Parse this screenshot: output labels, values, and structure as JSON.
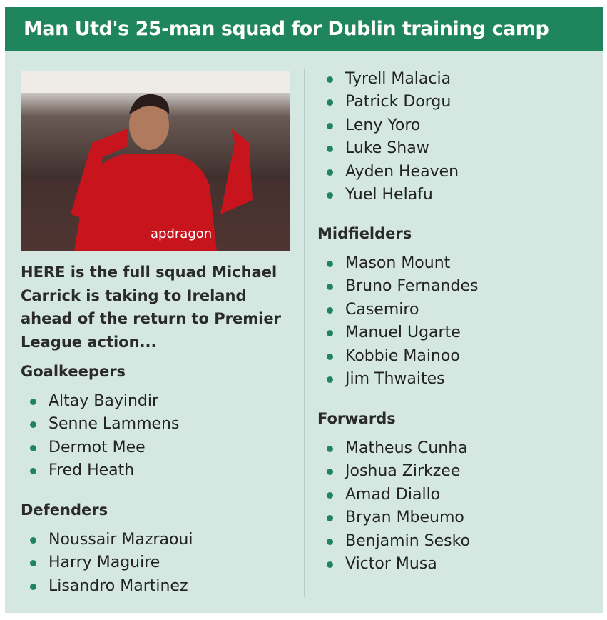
{
  "title": "Man Utd's 25-man squad for Dublin training camp",
  "intro": "HERE is the full squad Michael Carrick is taking to Ireland ahead of the return to Premier League action...",
  "photo": {
    "sponsor_text": "apdragon"
  },
  "accent_color": "#1f855c",
  "goalkeepers": {
    "heading": "Goalkeepers",
    "players": [
      "Altay Bayindir",
      "Senne Lammens",
      "Dermot Mee",
      "Fred Heath"
    ]
  },
  "defenders": {
    "heading": "Defenders",
    "players": [
      "Noussair Mazraoui",
      "Harry Maguire",
      "Lisandro Martinez",
      "Tyrell Malacia",
      "Patrick Dorgu",
      "Leny Yoro",
      "Luke Shaw",
      "Ayden Heaven",
      "Yuel Helafu"
    ]
  },
  "midfielders": {
    "heading": "Midfielders",
    "players": [
      "Mason Mount",
      "Bruno Fernandes",
      "Casemiro",
      "Manuel Ugarte",
      "Kobbie Mainoo",
      "Jim Thwaites"
    ]
  },
  "forwards": {
    "heading": "Forwards",
    "players": [
      "Matheus Cunha",
      "Joshua Zirkzee",
      "Amad Diallo",
      "Bryan Mbeumo",
      "Benjamin Sesko",
      "Victor Musa"
    ]
  }
}
